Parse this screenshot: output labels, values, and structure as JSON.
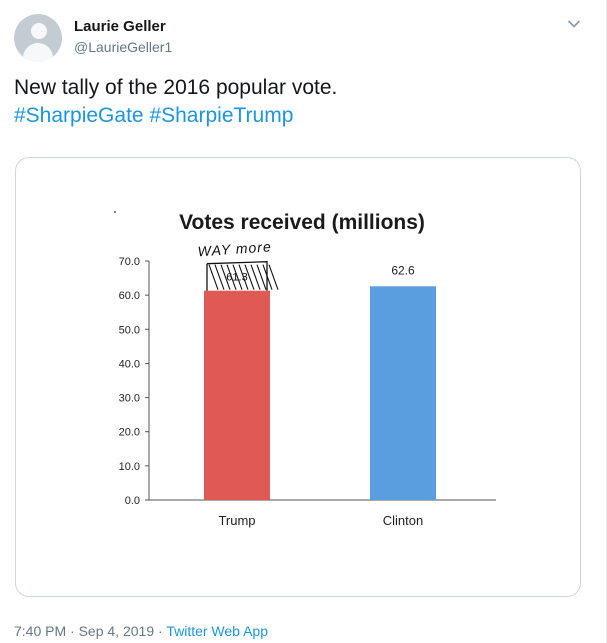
{
  "author": {
    "name": "Laurie Geller",
    "handle": "@LaurieGeller1"
  },
  "tweet": {
    "line1": "New tally of the 2016 popular vote.",
    "hashtags": [
      "#SharpieGate",
      "#SharpieTrump"
    ]
  },
  "icons": {
    "menu": "chevron-down-icon",
    "avatar": "default-avatar-icon"
  },
  "meta": {
    "time": "7:40 PM",
    "date": "Sep 4, 2019",
    "separator": "·",
    "source": "Twitter Web App"
  },
  "chart_data": {
    "type": "bar",
    "title": "Votes received (millions)",
    "categories": [
      "Trump",
      "Clinton"
    ],
    "values": [
      61.3,
      62.6
    ],
    "data_labels": [
      "61.3",
      "62.6"
    ],
    "colors": [
      "#e05a55",
      "#5a9ee0"
    ],
    "ylim": [
      0,
      70
    ],
    "yticks": [
      "0.0",
      "10.0",
      "20.0",
      "30.0",
      "40.0",
      "50.0",
      "60.0",
      "70.0"
    ],
    "annotation": "WAY more",
    "grid": false
  }
}
